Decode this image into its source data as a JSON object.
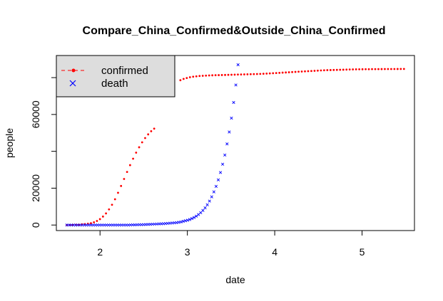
{
  "chart_data": {
    "type": "scatter",
    "title": "Compare_China_Confirmed&Outside_China_Confirmed",
    "xlabel": "date",
    "ylabel": "people",
    "xlim": [
      1.5,
      5.6
    ],
    "ylim": [
      -3000,
      92000
    ],
    "xticks": [
      {
        "value": 2,
        "label": "2"
      },
      {
        "value": 3,
        "label": "3"
      },
      {
        "value": 4,
        "label": "4"
      },
      {
        "value": 5,
        "label": "5"
      }
    ],
    "yticks": [
      {
        "value": 0,
        "label": "0"
      },
      {
        "value": 20000,
        "label": "20000"
      },
      {
        "value": 40000,
        "label": ""
      },
      {
        "value": 60000,
        "label": "60000"
      },
      {
        "value": 80000,
        "label": ""
      }
    ],
    "grid": false,
    "legend": {
      "position": "top-left",
      "background": "#dddddd",
      "entries": [
        {
          "label": "confirmed",
          "color": "#ff0000",
          "symbol": "dot-dash"
        },
        {
          "label": "death",
          "color": "#0000ff",
          "symbol": "cross"
        }
      ]
    },
    "series": [
      {
        "name": "confirmed",
        "color": "#ff0000",
        "marker": "dot",
        "x_start": 1.62,
        "x_end": 2.62,
        "values": [
          5,
          20,
          60,
          120,
          220,
          350,
          500,
          700,
          1000,
          1500,
          2200,
          3200,
          4600,
          6300,
          8500,
          11000,
          14000,
          17500,
          21200,
          25000,
          28800,
          32500,
          36000,
          39300,
          42200,
          44900,
          47200,
          49200,
          50900,
          52300
        ]
      },
      {
        "name": "confirmed",
        "color": "#ff0000",
        "marker": "dot",
        "x_start": 2.92,
        "x_end": 5.48,
        "values": [
          78600,
          79300,
          79800,
          80200,
          80500,
          80700,
          80900,
          81000,
          81100,
          81200,
          81250,
          81300,
          81350,
          81400,
          81450,
          81500,
          81550,
          81600,
          81650,
          81700,
          81750,
          81800,
          81850,
          81900,
          81950,
          82000,
          82100,
          82200,
          82300,
          82400,
          82500,
          82600,
          82700,
          82800,
          82900,
          83000,
          83100,
          83200,
          83300,
          83400,
          83500,
          83600,
          83700,
          83800,
          83900,
          84000,
          84050,
          84100,
          84150,
          84200,
          84250,
          84300,
          84350,
          84400,
          84450,
          84500,
          84520,
          84540,
          84560,
          84580,
          84600,
          84610,
          84620,
          84630,
          84640,
          84650,
          84660,
          84670,
          84680,
          84690,
          84700
        ]
      },
      {
        "name": "death",
        "color": "#0000ff",
        "marker": "cross",
        "x_start": 1.62,
        "x_end": 3.58,
        "values": [
          0,
          0,
          0,
          0,
          0,
          0,
          0,
          0,
          0,
          0,
          0,
          0,
          0,
          0,
          0,
          0,
          0,
          0,
          0,
          0,
          0,
          0,
          0,
          0,
          0,
          0,
          0,
          0,
          0,
          50,
          80,
          110,
          140,
          170,
          200,
          250,
          300,
          350,
          400,
          450,
          500,
          550,
          600,
          650,
          700,
          800,
          900,
          1000,
          1100,
          1200,
          1300,
          1500,
          1700,
          2000,
          2300,
          2600,
          3000,
          3500,
          4100,
          4800,
          5700,
          6700,
          7900,
          9300,
          11000,
          13000,
          15300,
          18000,
          21000,
          24500,
          28500,
          33000,
          38000,
          44000,
          50500,
          58000,
          66500,
          76000,
          87000
        ]
      }
    ]
  }
}
